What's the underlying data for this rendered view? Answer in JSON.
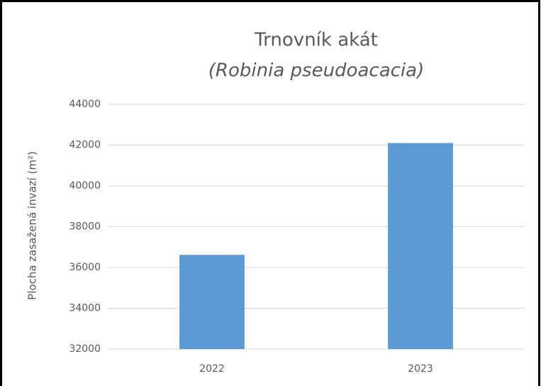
{
  "chart_data": {
    "type": "bar",
    "title": "Trnovník akát",
    "subtitle": "(Robinia pseudoacacia)",
    "y_label": "Plocha zasažená invazí (m²)",
    "categories": [
      "2022",
      "2023"
    ],
    "values": [
      36620,
      42100
    ],
    "color": "#5b9bd5",
    "ylim": [
      32000,
      44000
    ],
    "yticks": [
      32000,
      34000,
      36000,
      38000,
      40000,
      42000,
      44000
    ],
    "grid": true
  }
}
